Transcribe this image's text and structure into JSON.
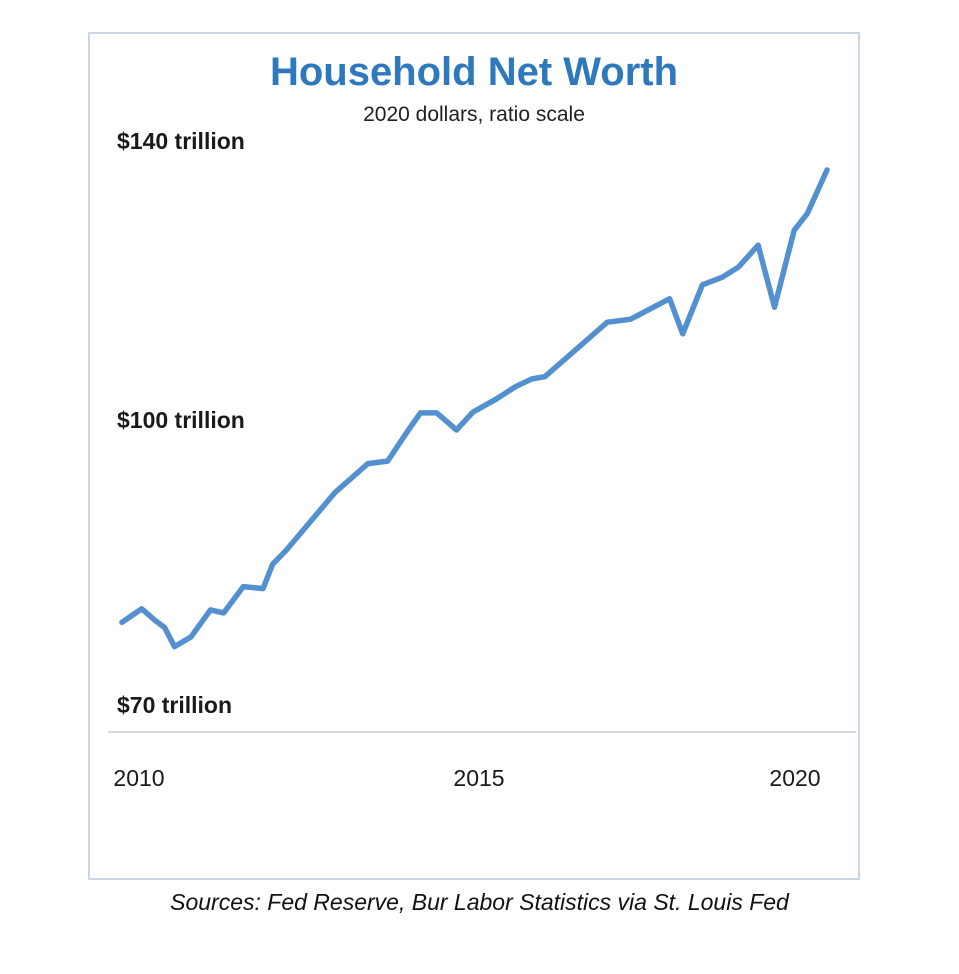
{
  "page": {
    "source": "Sources: Fed Reserve, Bur Labor Statistics via St. Louis Fed"
  },
  "colors": {
    "title": "#2e78be",
    "line": "#5390cf",
    "axis": "#d9d9d9",
    "border": "#ccd7e5",
    "text": "#1a1a1a"
  },
  "chart_data": {
    "type": "line",
    "title": "Household Net Worth",
    "subtitle": "2020 dollars, ratio scale",
    "y_unit": "trillions of 2020 dollars",
    "y_scale": "log (ratio scale)",
    "y_tick_labels": [
      "$140 trillion",
      "$100 trillion",
      "$70 trillion"
    ],
    "y_tick_values": [
      140,
      100,
      70
    ],
    "x_tick_labels": [
      "2010",
      "2015",
      "2020"
    ],
    "x_tick_values": [
      2010,
      2015,
      2020
    ],
    "x_range": [
      2009.75,
      2020.5
    ],
    "grid": false,
    "legend": false,
    "series": [
      {
        "name": "Household net worth",
        "points": [
          [
            2009.75,
            78.1
          ],
          [
            2010.05,
            79.4
          ],
          [
            2010.25,
            78.3
          ],
          [
            2010.4,
            77.6
          ],
          [
            2010.55,
            75.8
          ],
          [
            2010.8,
            76.7
          ],
          [
            2011.1,
            79.3
          ],
          [
            2011.3,
            79.0
          ],
          [
            2011.6,
            81.6
          ],
          [
            2011.9,
            81.4
          ],
          [
            2012.05,
            83.9
          ],
          [
            2012.25,
            85.3
          ],
          [
            2013.0,
            91.6
          ],
          [
            2013.5,
            94.9
          ],
          [
            2013.8,
            95.2
          ],
          [
            2014.1,
            98.7
          ],
          [
            2014.3,
            101.0
          ],
          [
            2014.55,
            101.0
          ],
          [
            2014.85,
            98.9
          ],
          [
            2015.1,
            101.1
          ],
          [
            2015.45,
            102.7
          ],
          [
            2015.75,
            104.3
          ],
          [
            2016.0,
            105.3
          ],
          [
            2016.2,
            105.6
          ],
          [
            2017.15,
            112.9
          ],
          [
            2017.5,
            113.3
          ],
          [
            2018.1,
            116.2
          ],
          [
            2018.3,
            111.3
          ],
          [
            2018.6,
            118.2
          ],
          [
            2018.9,
            119.3
          ],
          [
            2019.15,
            120.8
          ],
          [
            2019.45,
            124.1
          ],
          [
            2019.7,
            115.0
          ],
          [
            2020.0,
            126.4
          ],
          [
            2020.2,
            129.0
          ],
          [
            2020.5,
            136.1
          ]
        ]
      }
    ]
  }
}
